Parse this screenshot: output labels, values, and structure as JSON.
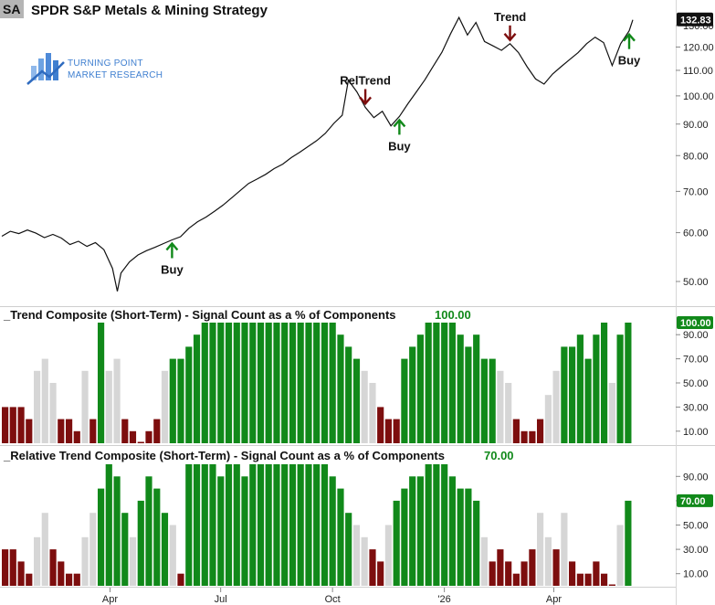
{
  "header": {
    "ticker": "SA",
    "title": "SPDR S&P Metals & Mining  Strategy"
  },
  "logo": {
    "line1": "TURNING POINT",
    "line2": "MARKET RESEARCH",
    "color": "#3f7fd0"
  },
  "colors": {
    "green": "#11891a",
    "dark_red": "#7d0e0e",
    "gray": "#d6d6d6",
    "price_line": "#111111",
    "last_value_bg": "#111111"
  },
  "chart_data": [
    {
      "type": "line",
      "name": "price",
      "title": "SPDR S&P Metals & Mining  Strategy",
      "log_scale": true,
      "y_ticks": [
        "130.00",
        "120.00",
        "110.00",
        "100.00",
        "90.00",
        "80.00",
        "70.00",
        "60.00",
        "50.00"
      ],
      "last_value": "132.83",
      "x_ticks": [
        "Apr",
        "Jul",
        "Oct",
        "'26",
        "Apr"
      ],
      "points": [
        [
          "2025-01-02",
          59.2
        ],
        [
          "2025-01-09",
          60.3
        ],
        [
          "2025-01-16",
          59.8
        ],
        [
          "2025-01-23",
          60.6
        ],
        [
          "2025-01-30",
          59.9
        ],
        [
          "2025-02-06",
          58.9
        ],
        [
          "2025-02-13",
          59.6
        ],
        [
          "2025-02-20",
          58.8
        ],
        [
          "2025-02-27",
          57.4
        ],
        [
          "2025-03-06",
          58.1
        ],
        [
          "2025-03-13",
          57.0
        ],
        [
          "2025-03-20",
          57.8
        ],
        [
          "2025-03-27",
          56.3
        ],
        [
          "2025-04-03",
          52.5
        ],
        [
          "2025-04-07",
          48.2
        ],
        [
          "2025-04-10",
          51.6
        ],
        [
          "2025-04-17",
          53.8
        ],
        [
          "2025-04-24",
          55.2
        ],
        [
          "2025-05-01",
          56.1
        ],
        [
          "2025-05-08",
          56.8
        ],
        [
          "2025-05-15",
          57.6
        ],
        [
          "2025-05-22",
          58.4
        ],
        [
          "2025-05-29",
          59.1
        ],
        [
          "2025-06-05",
          61.0
        ],
        [
          "2025-06-12",
          62.5
        ],
        [
          "2025-06-19",
          63.6
        ],
        [
          "2025-06-26",
          65.0
        ],
        [
          "2025-07-03",
          66.5
        ],
        [
          "2025-07-10",
          68.3
        ],
        [
          "2025-07-17",
          70.2
        ],
        [
          "2025-07-24",
          72.1
        ],
        [
          "2025-07-31",
          73.3
        ],
        [
          "2025-08-07",
          74.6
        ],
        [
          "2025-08-14",
          76.2
        ],
        [
          "2025-08-21",
          77.5
        ],
        [
          "2025-08-28",
          79.4
        ],
        [
          "2025-09-04",
          81.0
        ],
        [
          "2025-09-11",
          82.8
        ],
        [
          "2025-09-18",
          84.6
        ],
        [
          "2025-09-25",
          86.9
        ],
        [
          "2025-10-02",
          90.2
        ],
        [
          "2025-10-09",
          93.0
        ],
        [
          "2025-10-14",
          106.0
        ],
        [
          "2025-10-21",
          101.5
        ],
        [
          "2025-10-28",
          95.8
        ],
        [
          "2025-11-04",
          92.2
        ],
        [
          "2025-11-11",
          94.4
        ],
        [
          "2025-11-18",
          89.4
        ],
        [
          "2025-11-25",
          92.6
        ],
        [
          "2025-12-02",
          97.1
        ],
        [
          "2025-12-09",
          101.5
        ],
        [
          "2025-12-16",
          106.2
        ],
        [
          "2025-12-23",
          111.8
        ],
        [
          "2025-12-30",
          117.7
        ],
        [
          "2026-01-06",
          126.0
        ],
        [
          "2026-01-13",
          134.0
        ],
        [
          "2026-01-20",
          125.5
        ],
        [
          "2026-01-27",
          131.5
        ],
        [
          "2026-02-03",
          122.5
        ],
        [
          "2026-02-10",
          120.5
        ],
        [
          "2026-02-17",
          118.5
        ],
        [
          "2026-02-24",
          121.5
        ],
        [
          "2026-03-03",
          117.5
        ],
        [
          "2026-03-10",
          111.5
        ],
        [
          "2026-03-17",
          106.5
        ],
        [
          "2026-03-24",
          104.5
        ],
        [
          "2026-03-31",
          108.5
        ],
        [
          "2026-04-07",
          111.5
        ],
        [
          "2026-04-14",
          114.5
        ],
        [
          "2026-04-21",
          117.5
        ],
        [
          "2026-04-28",
          121.5
        ],
        [
          "2026-05-05",
          124.5
        ],
        [
          "2026-05-12",
          122.0
        ],
        [
          "2026-05-19",
          112.0
        ],
        [
          "2026-05-26",
          121.5
        ],
        [
          "2026-06-02",
          127.5
        ],
        [
          "2026-06-05",
          132.83
        ]
      ],
      "annotations": [
        {
          "text": "Buy",
          "date": "2025-05-22",
          "value": 58.4,
          "kind": "up"
        },
        {
          "text": "RelTrend",
          "date": "2025-10-28",
          "value": 95.8,
          "kind": "down"
        },
        {
          "text": "Buy",
          "date": "2025-11-25",
          "value": 92.6,
          "kind": "up"
        },
        {
          "text": "Trend",
          "date": "2026-02-24",
          "value": 121.5,
          "kind": "down"
        },
        {
          "text": "Buy",
          "date": "2026-06-02",
          "value": 127.5,
          "kind": "up"
        }
      ]
    },
    {
      "type": "bar",
      "name": "trend_composite",
      "title": "_Trend Composite (Short-Term) - Signal Count as a % of Components",
      "last_value": "100.00",
      "y_ticks": [
        "90.00",
        "70.00",
        "50.00",
        "30.00",
        "10.00"
      ],
      "ylim": [
        0,
        100
      ],
      "comment": "weekly bars: value and color class (g=green, r=dark red, y=gray)",
      "bars": [
        [
          30,
          "r"
        ],
        [
          30,
          "r"
        ],
        [
          30,
          "r"
        ],
        [
          20,
          "r"
        ],
        [
          60,
          "y"
        ],
        [
          70,
          "y"
        ],
        [
          50,
          "y"
        ],
        [
          20,
          "r"
        ],
        [
          20,
          "r"
        ],
        [
          10,
          "r"
        ],
        [
          60,
          "y"
        ],
        [
          20,
          "r"
        ],
        [
          100,
          "g"
        ],
        [
          60,
          "y"
        ],
        [
          70,
          "y"
        ],
        [
          20,
          "r"
        ],
        [
          10,
          "r"
        ],
        [
          0,
          "r"
        ],
        [
          10,
          "r"
        ],
        [
          20,
          "r"
        ],
        [
          60,
          "y"
        ],
        [
          70,
          "g"
        ],
        [
          70,
          "g"
        ],
        [
          80,
          "g"
        ],
        [
          90,
          "g"
        ],
        [
          100,
          "g"
        ],
        [
          100,
          "g"
        ],
        [
          100,
          "g"
        ],
        [
          100,
          "g"
        ],
        [
          100,
          "g"
        ],
        [
          100,
          "g"
        ],
        [
          100,
          "g"
        ],
        [
          100,
          "g"
        ],
        [
          100,
          "g"
        ],
        [
          100,
          "g"
        ],
        [
          100,
          "g"
        ],
        [
          100,
          "g"
        ],
        [
          100,
          "g"
        ],
        [
          100,
          "g"
        ],
        [
          100,
          "g"
        ],
        [
          100,
          "g"
        ],
        [
          100,
          "g"
        ],
        [
          90,
          "g"
        ],
        [
          80,
          "g"
        ],
        [
          70,
          "g"
        ],
        [
          60,
          "y"
        ],
        [
          50,
          "y"
        ],
        [
          30,
          "r"
        ],
        [
          20,
          "r"
        ],
        [
          20,
          "r"
        ],
        [
          70,
          "g"
        ],
        [
          80,
          "g"
        ],
        [
          90,
          "g"
        ],
        [
          100,
          "g"
        ],
        [
          100,
          "g"
        ],
        [
          100,
          "g"
        ],
        [
          100,
          "g"
        ],
        [
          90,
          "g"
        ],
        [
          80,
          "g"
        ],
        [
          90,
          "g"
        ],
        [
          70,
          "g"
        ],
        [
          70,
          "g"
        ],
        [
          60,
          "y"
        ],
        [
          50,
          "y"
        ],
        [
          20,
          "r"
        ],
        [
          10,
          "r"
        ],
        [
          10,
          "r"
        ],
        [
          20,
          "r"
        ],
        [
          40,
          "y"
        ],
        [
          60,
          "y"
        ],
        [
          80,
          "g"
        ],
        [
          80,
          "g"
        ],
        [
          90,
          "g"
        ],
        [
          70,
          "g"
        ],
        [
          90,
          "g"
        ],
        [
          100,
          "g"
        ],
        [
          50,
          "y"
        ],
        [
          90,
          "g"
        ],
        [
          100,
          "g"
        ]
      ]
    },
    {
      "type": "bar",
      "name": "relative_trend_composite",
      "title": "_Relative Trend Composite (Short-Term) - Signal Count as a % of Components",
      "last_value": "70.00",
      "y_ticks": [
        "90.00",
        "70.00",
        "50.00",
        "30.00",
        "10.00"
      ],
      "ylim": [
        0,
        100
      ],
      "bars": [
        [
          30,
          "r"
        ],
        [
          30,
          "r"
        ],
        [
          20,
          "r"
        ],
        [
          10,
          "r"
        ],
        [
          40,
          "y"
        ],
        [
          60,
          "y"
        ],
        [
          30,
          "r"
        ],
        [
          20,
          "r"
        ],
        [
          10,
          "r"
        ],
        [
          10,
          "r"
        ],
        [
          40,
          "y"
        ],
        [
          60,
          "y"
        ],
        [
          80,
          "g"
        ],
        [
          100,
          "g"
        ],
        [
          90,
          "g"
        ],
        [
          60,
          "g"
        ],
        [
          40,
          "y"
        ],
        [
          70,
          "g"
        ],
        [
          90,
          "g"
        ],
        [
          80,
          "g"
        ],
        [
          60,
          "g"
        ],
        [
          50,
          "y"
        ],
        [
          10,
          "r"
        ],
        [
          100,
          "g"
        ],
        [
          100,
          "g"
        ],
        [
          100,
          "g"
        ],
        [
          100,
          "g"
        ],
        [
          90,
          "g"
        ],
        [
          100,
          "g"
        ],
        [
          100,
          "g"
        ],
        [
          90,
          "g"
        ],
        [
          100,
          "g"
        ],
        [
          100,
          "g"
        ],
        [
          100,
          "g"
        ],
        [
          100,
          "g"
        ],
        [
          100,
          "g"
        ],
        [
          100,
          "g"
        ],
        [
          100,
          "g"
        ],
        [
          100,
          "g"
        ],
        [
          100,
          "g"
        ],
        [
          100,
          "g"
        ],
        [
          90,
          "g"
        ],
        [
          80,
          "g"
        ],
        [
          60,
          "g"
        ],
        [
          50,
          "y"
        ],
        [
          40,
          "y"
        ],
        [
          30,
          "r"
        ],
        [
          20,
          "r"
        ],
        [
          50,
          "y"
        ],
        [
          70,
          "g"
        ],
        [
          80,
          "g"
        ],
        [
          90,
          "g"
        ],
        [
          90,
          "g"
        ],
        [
          100,
          "g"
        ],
        [
          100,
          "g"
        ],
        [
          100,
          "g"
        ],
        [
          90,
          "g"
        ],
        [
          80,
          "g"
        ],
        [
          80,
          "g"
        ],
        [
          70,
          "g"
        ],
        [
          40,
          "y"
        ],
        [
          20,
          "r"
        ],
        [
          30,
          "r"
        ],
        [
          20,
          "r"
        ],
        [
          10,
          "r"
        ],
        [
          20,
          "r"
        ],
        [
          30,
          "r"
        ],
        [
          60,
          "y"
        ],
        [
          40,
          "y"
        ],
        [
          30,
          "r"
        ],
        [
          60,
          "y"
        ],
        [
          20,
          "r"
        ],
        [
          10,
          "r"
        ],
        [
          10,
          "r"
        ],
        [
          20,
          "r"
        ],
        [
          10,
          "r"
        ],
        [
          0,
          "r"
        ],
        [
          50,
          "y"
        ],
        [
          70,
          "g"
        ]
      ]
    }
  ]
}
